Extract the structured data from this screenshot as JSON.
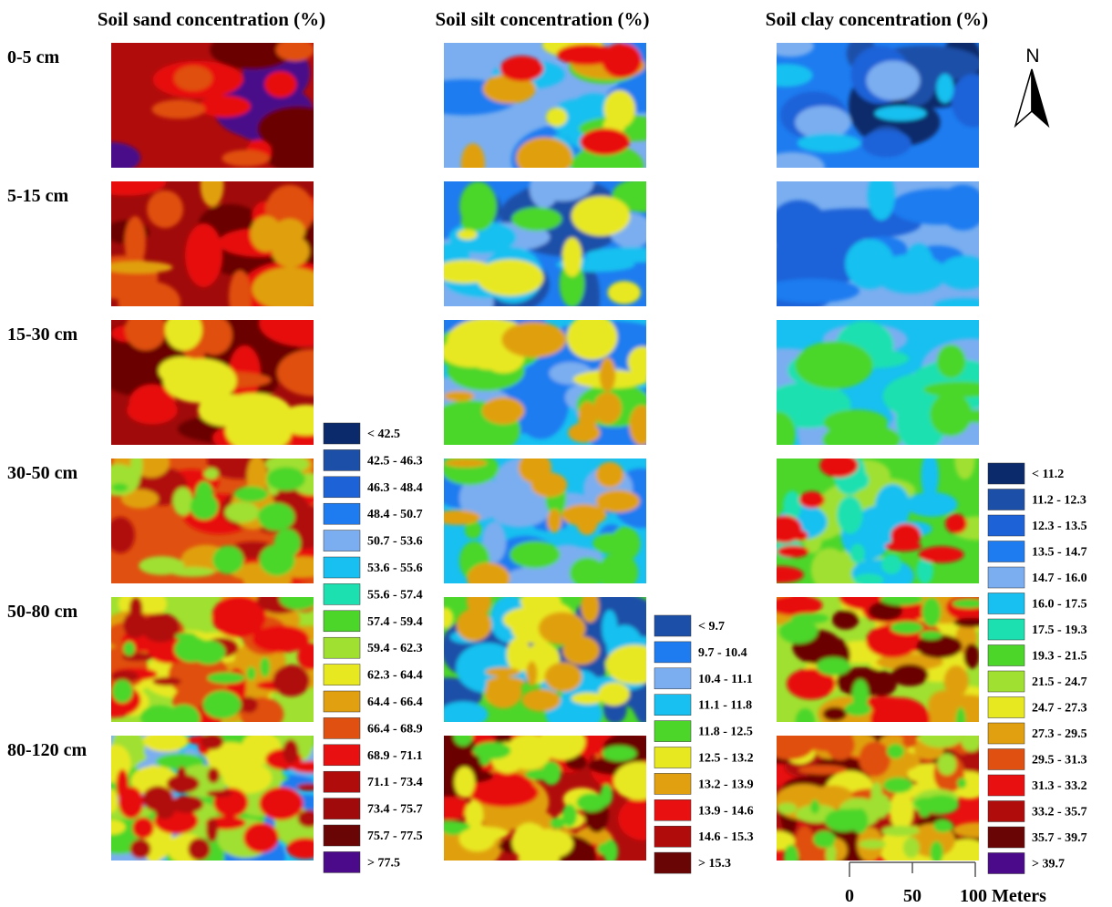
{
  "column_titles": [
    "Soil sand concentration (%)",
    "Soil silt concentration (%)",
    "Soil  clay concentration (%)"
  ],
  "row_labels": [
    "0-5 cm",
    "5-15 cm",
    "15-30 cm",
    "30-50 cm",
    "50-80 cm",
    "80-120 cm"
  ],
  "legends": [
    {
      "items": [
        {
          "label": "< 42.5",
          "color": "#0a2a6b"
        },
        {
          "label": "42.5 - 46.3",
          "color": "#1c4fa8"
        },
        {
          "label": "46.3 - 48.4",
          "color": "#1e62d8"
        },
        {
          "label": "48.4 - 50.7",
          "color": "#1e7cf0"
        },
        {
          "label": "50.7 - 53.6",
          "color": "#7aaef0"
        },
        {
          "label": "53.6 - 55.6",
          "color": "#17c0f0"
        },
        {
          "label": "55.6 - 57.4",
          "color": "#1de0b0"
        },
        {
          "label": "57.4 - 59.4",
          "color": "#4cd62a"
        },
        {
          "label": "59.4 - 62.3",
          "color": "#a0e030"
        },
        {
          "label": "62.3 - 64.4",
          "color": "#e8e820"
        },
        {
          "label": "64.4 - 66.4",
          "color": "#e0a010"
        },
        {
          "label": "66.4 - 68.9",
          "color": "#e05010"
        },
        {
          "label": "68.9 - 71.1",
          "color": "#e81010"
        },
        {
          "label": "71.1 - 73.4",
          "color": "#b00c0c"
        },
        {
          "label": "73.4 - 75.7",
          "color": "#a00a0a"
        },
        {
          "label": "75.7 - 77.5",
          "color": "#6a0505"
        },
        {
          "label": "> 77.5",
          "color": "#4a0a8a"
        }
      ]
    },
    {
      "items": [
        {
          "label": "< 9.7",
          "color": "#1c4fa8"
        },
        {
          "label": "9.7 - 10.4",
          "color": "#1e7cf0"
        },
        {
          "label": "10.4 - 11.1",
          "color": "#7aaef0"
        },
        {
          "label": "11.1 - 11.8",
          "color": "#17c0f0"
        },
        {
          "label": "11.8 - 12.5",
          "color": "#4cd62a"
        },
        {
          "label": "12.5 - 13.2",
          "color": "#e8e820"
        },
        {
          "label": "13.2 - 13.9",
          "color": "#e0a010"
        },
        {
          "label": "13.9 - 14.6",
          "color": "#e81010"
        },
        {
          "label": "14.6 - 15.3",
          "color": "#b00c0c"
        },
        {
          "label": "> 15.3",
          "color": "#6a0505"
        }
      ]
    },
    {
      "items": [
        {
          "label": "< 11.2",
          "color": "#0a2a6b"
        },
        {
          "label": "11.2 - 12.3",
          "color": "#1c4fa8"
        },
        {
          "label": "12.3 - 13.5",
          "color": "#1e62d8"
        },
        {
          "label": "13.5 - 14.7",
          "color": "#1e7cf0"
        },
        {
          "label": "14.7 - 16.0",
          "color": "#7aaef0"
        },
        {
          "label": "16.0 - 17.5",
          "color": "#17c0f0"
        },
        {
          "label": "17.5 - 19.3",
          "color": "#1de0b0"
        },
        {
          "label": "19.3 - 21.5",
          "color": "#4cd62a"
        },
        {
          "label": "21.5 - 24.7",
          "color": "#a0e030"
        },
        {
          "label": "24.7 - 27.3",
          "color": "#e8e820"
        },
        {
          "label": "27.3 - 29.5",
          "color": "#e0a010"
        },
        {
          "label": "29.5 - 31.3",
          "color": "#e05010"
        },
        {
          "label": "31.3 - 33.2",
          "color": "#e81010"
        },
        {
          "label": "33.2 - 35.7",
          "color": "#b00c0c"
        },
        {
          "label": "35.7 - 39.7",
          "color": "#6a0505"
        },
        {
          "label": "> 39.7",
          "color": "#4a0a8a"
        }
      ]
    }
  ],
  "north_label": "N",
  "scale_bar": {
    "labels": [
      "0",
      "50",
      "100 Meters"
    ]
  }
}
